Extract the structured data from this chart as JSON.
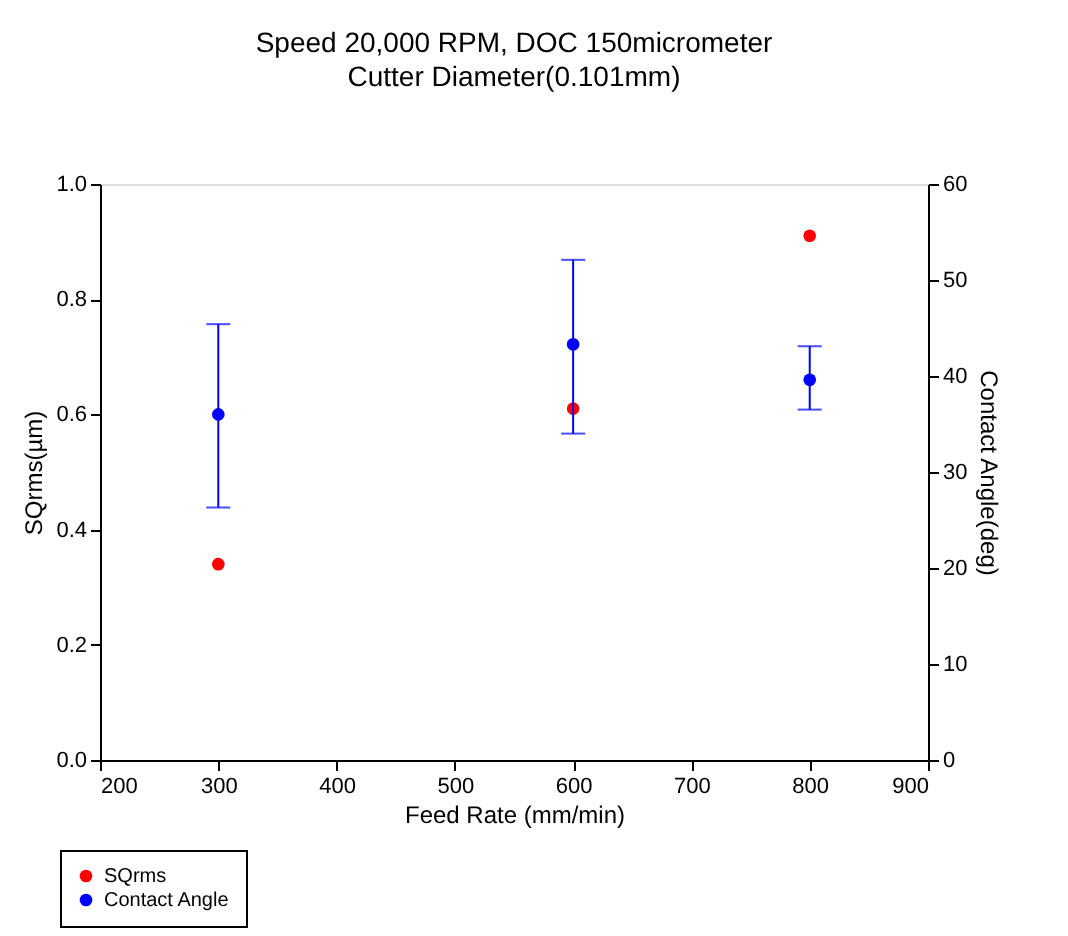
{
  "chart_data": {
    "type": "scatter",
    "title": "Speed 20,000 RPM, DOC 150micrometer",
    "subtitle": "Cutter Diameter(0.101mm)",
    "xlabel": "Feed Rate (mm/min)",
    "ylabel": "SQrms(µm)",
    "y2label": "Contact Angle(deg)",
    "x": [
      300,
      600,
      800
    ],
    "series": [
      {
        "name": "SQrms",
        "color": "#ff0000",
        "values": [
          0.34,
          0.61,
          0.91
        ]
      },
      {
        "name": "Contact Angle",
        "color": "#0000ff",
        "axis": "y2",
        "values": [
          36.0,
          43.3,
          39.6
        ],
        "errors": [
          [
            26.3,
            45.4
          ],
          [
            34.0,
            52.1
          ],
          [
            36.5,
            43.1
          ]
        ]
      }
    ],
    "xlim": [
      200,
      900
    ],
    "xticks": [
      200,
      300,
      400,
      500,
      600,
      700,
      800,
      900
    ],
    "ylim": [
      0,
      1
    ],
    "yticks": [
      {
        "value": 0,
        "label": "0.0"
      },
      {
        "value": 0.2,
        "label": "0.2"
      },
      {
        "value": 0.4,
        "label": "0.4"
      },
      {
        "value": 0.6,
        "label": "0.6"
      },
      {
        "value": 0.8,
        "label": "0.8"
      },
      {
        "value": 1,
        "label": "1.0"
      }
    ],
    "y2lim": [
      0,
      60
    ],
    "y2ticks": [
      0,
      10,
      20,
      30,
      40,
      50,
      60
    ],
    "marker": "circle",
    "grid": false,
    "legend": "bottom left"
  }
}
